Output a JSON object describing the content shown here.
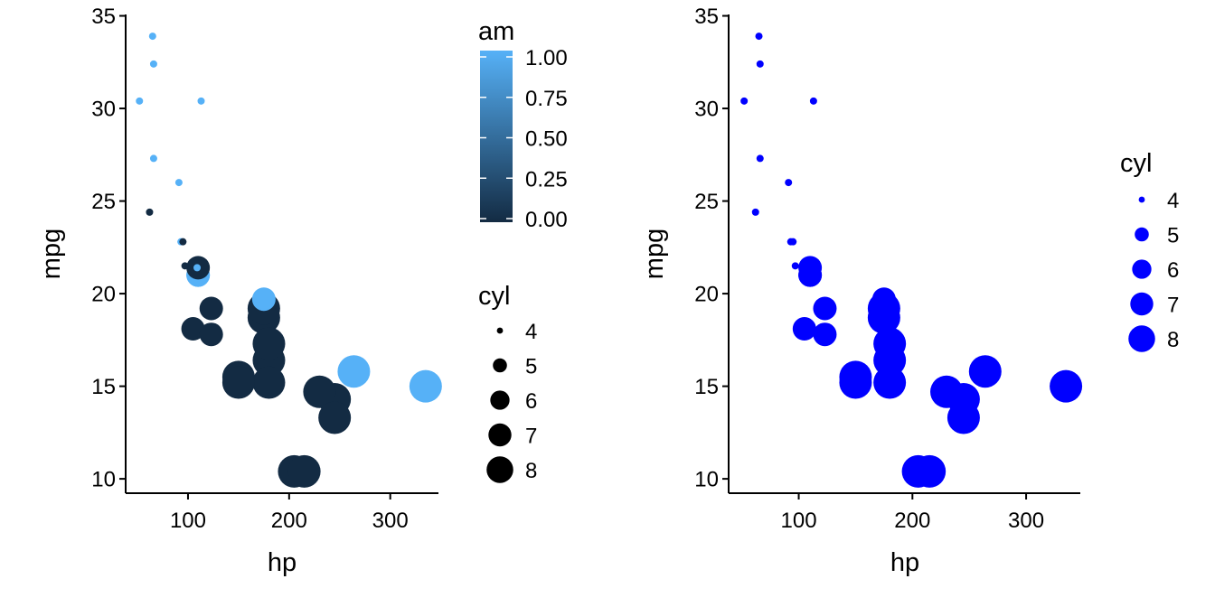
{
  "chart_data": [
    {
      "type": "scatter",
      "xlabel": "hp",
      "ylabel": "mpg",
      "xlim": [
        38.35,
        347.65
      ],
      "ylim": [
        9.225,
        35.075
      ],
      "x_ticks": [
        "100",
        "200",
        "300"
      ],
      "x_tick_values": [
        100,
        200,
        300
      ],
      "y_ticks": [
        "10",
        "15",
        "20",
        "25",
        "30",
        "35"
      ],
      "y_tick_values": [
        10,
        15,
        20,
        25,
        30,
        35
      ],
      "grid": false,
      "color_mapping": "am",
      "color_low": "#132B43",
      "color_high": "#56B1F7",
      "size_mapping": "cyl",
      "points": [
        {
          "hp": 110,
          "mpg": 21.0,
          "cyl": 6,
          "am": 1
        },
        {
          "hp": 110,
          "mpg": 21.0,
          "cyl": 6,
          "am": 1
        },
        {
          "hp": 93,
          "mpg": 22.8,
          "cyl": 4,
          "am": 1
        },
        {
          "hp": 110,
          "mpg": 21.4,
          "cyl": 6,
          "am": 0
        },
        {
          "hp": 175,
          "mpg": 18.7,
          "cyl": 8,
          "am": 0
        },
        {
          "hp": 105,
          "mpg": 18.1,
          "cyl": 6,
          "am": 0
        },
        {
          "hp": 245,
          "mpg": 14.3,
          "cyl": 8,
          "am": 0
        },
        {
          "hp": 62,
          "mpg": 24.4,
          "cyl": 4,
          "am": 0
        },
        {
          "hp": 95,
          "mpg": 22.8,
          "cyl": 4,
          "am": 0
        },
        {
          "hp": 123,
          "mpg": 19.2,
          "cyl": 6,
          "am": 0
        },
        {
          "hp": 123,
          "mpg": 17.8,
          "cyl": 6,
          "am": 0
        },
        {
          "hp": 180,
          "mpg": 16.4,
          "cyl": 8,
          "am": 0
        },
        {
          "hp": 180,
          "mpg": 17.3,
          "cyl": 8,
          "am": 0
        },
        {
          "hp": 180,
          "mpg": 15.2,
          "cyl": 8,
          "am": 0
        },
        {
          "hp": 205,
          "mpg": 10.4,
          "cyl": 8,
          "am": 0
        },
        {
          "hp": 215,
          "mpg": 10.4,
          "cyl": 8,
          "am": 0
        },
        {
          "hp": 230,
          "mpg": 14.7,
          "cyl": 8,
          "am": 0
        },
        {
          "hp": 66,
          "mpg": 32.4,
          "cyl": 4,
          "am": 1
        },
        {
          "hp": 52,
          "mpg": 30.4,
          "cyl": 4,
          "am": 1
        },
        {
          "hp": 65,
          "mpg": 33.9,
          "cyl": 4,
          "am": 1
        },
        {
          "hp": 97,
          "mpg": 21.5,
          "cyl": 4,
          "am": 0
        },
        {
          "hp": 150,
          "mpg": 15.5,
          "cyl": 8,
          "am": 0
        },
        {
          "hp": 150,
          "mpg": 15.2,
          "cyl": 8,
          "am": 0
        },
        {
          "hp": 245,
          "mpg": 13.3,
          "cyl": 8,
          "am": 0
        },
        {
          "hp": 175,
          "mpg": 19.2,
          "cyl": 8,
          "am": 0
        },
        {
          "hp": 66,
          "mpg": 27.3,
          "cyl": 4,
          "am": 1
        },
        {
          "hp": 91,
          "mpg": 26.0,
          "cyl": 4,
          "am": 1
        },
        {
          "hp": 113,
          "mpg": 30.4,
          "cyl": 4,
          "am": 1
        },
        {
          "hp": 264,
          "mpg": 15.8,
          "cyl": 8,
          "am": 1
        },
        {
          "hp": 175,
          "mpg": 19.7,
          "cyl": 6,
          "am": 1
        },
        {
          "hp": 335,
          "mpg": 15.0,
          "cyl": 8,
          "am": 1
        },
        {
          "hp": 109,
          "mpg": 21.4,
          "cyl": 4,
          "am": 1
        }
      ],
      "legends": {
        "color": {
          "title": "am",
          "labels": [
            "1.00",
            "0.75",
            "0.50",
            "0.25",
            "0.00"
          ],
          "values": [
            1.0,
            0.75,
            0.5,
            0.25,
            0.0
          ]
        },
        "size": {
          "title": "cyl",
          "labels": [
            "4",
            "5",
            "6",
            "7",
            "8"
          ],
          "values": [
            4,
            5,
            6,
            7,
            8
          ]
        }
      }
    },
    {
      "type": "scatter",
      "xlabel": "hp",
      "ylabel": "mpg",
      "xlim": [
        38.35,
        347.65
      ],
      "ylim": [
        9.225,
        35.075
      ],
      "x_ticks": [
        "100",
        "200",
        "300"
      ],
      "x_tick_values": [
        100,
        200,
        300
      ],
      "y_ticks": [
        "10",
        "15",
        "20",
        "25",
        "30",
        "35"
      ],
      "y_tick_values": [
        10,
        15,
        20,
        25,
        30,
        35
      ],
      "grid": false,
      "point_color": "#0000FF",
      "size_mapping": "cyl",
      "points": [
        {
          "hp": 110,
          "mpg": 21.0,
          "cyl": 6
        },
        {
          "hp": 110,
          "mpg": 21.0,
          "cyl": 6
        },
        {
          "hp": 93,
          "mpg": 22.8,
          "cyl": 4
        },
        {
          "hp": 110,
          "mpg": 21.4,
          "cyl": 6
        },
        {
          "hp": 175,
          "mpg": 18.7,
          "cyl": 8
        },
        {
          "hp": 105,
          "mpg": 18.1,
          "cyl": 6
        },
        {
          "hp": 245,
          "mpg": 14.3,
          "cyl": 8
        },
        {
          "hp": 62,
          "mpg": 24.4,
          "cyl": 4
        },
        {
          "hp": 95,
          "mpg": 22.8,
          "cyl": 4
        },
        {
          "hp": 123,
          "mpg": 19.2,
          "cyl": 6
        },
        {
          "hp": 123,
          "mpg": 17.8,
          "cyl": 6
        },
        {
          "hp": 180,
          "mpg": 16.4,
          "cyl": 8
        },
        {
          "hp": 180,
          "mpg": 17.3,
          "cyl": 8
        },
        {
          "hp": 180,
          "mpg": 15.2,
          "cyl": 8
        },
        {
          "hp": 205,
          "mpg": 10.4,
          "cyl": 8
        },
        {
          "hp": 215,
          "mpg": 10.4,
          "cyl": 8
        },
        {
          "hp": 230,
          "mpg": 14.7,
          "cyl": 8
        },
        {
          "hp": 66,
          "mpg": 32.4,
          "cyl": 4
        },
        {
          "hp": 52,
          "mpg": 30.4,
          "cyl": 4
        },
        {
          "hp": 65,
          "mpg": 33.9,
          "cyl": 4
        },
        {
          "hp": 97,
          "mpg": 21.5,
          "cyl": 4
        },
        {
          "hp": 150,
          "mpg": 15.5,
          "cyl": 8
        },
        {
          "hp": 150,
          "mpg": 15.2,
          "cyl": 8
        },
        {
          "hp": 245,
          "mpg": 13.3,
          "cyl": 8
        },
        {
          "hp": 175,
          "mpg": 19.2,
          "cyl": 8
        },
        {
          "hp": 66,
          "mpg": 27.3,
          "cyl": 4
        },
        {
          "hp": 91,
          "mpg": 26.0,
          "cyl": 4
        },
        {
          "hp": 113,
          "mpg": 30.4,
          "cyl": 4
        },
        {
          "hp": 264,
          "mpg": 15.8,
          "cyl": 8
        },
        {
          "hp": 175,
          "mpg": 19.7,
          "cyl": 6
        },
        {
          "hp": 335,
          "mpg": 15.0,
          "cyl": 8
        },
        {
          "hp": 109,
          "mpg": 21.4,
          "cyl": 4
        }
      ],
      "legends": {
        "size": {
          "title": "cyl",
          "labels": [
            "4",
            "5",
            "6",
            "7",
            "8"
          ],
          "values": [
            4,
            5,
            6,
            7,
            8
          ]
        }
      }
    }
  ]
}
